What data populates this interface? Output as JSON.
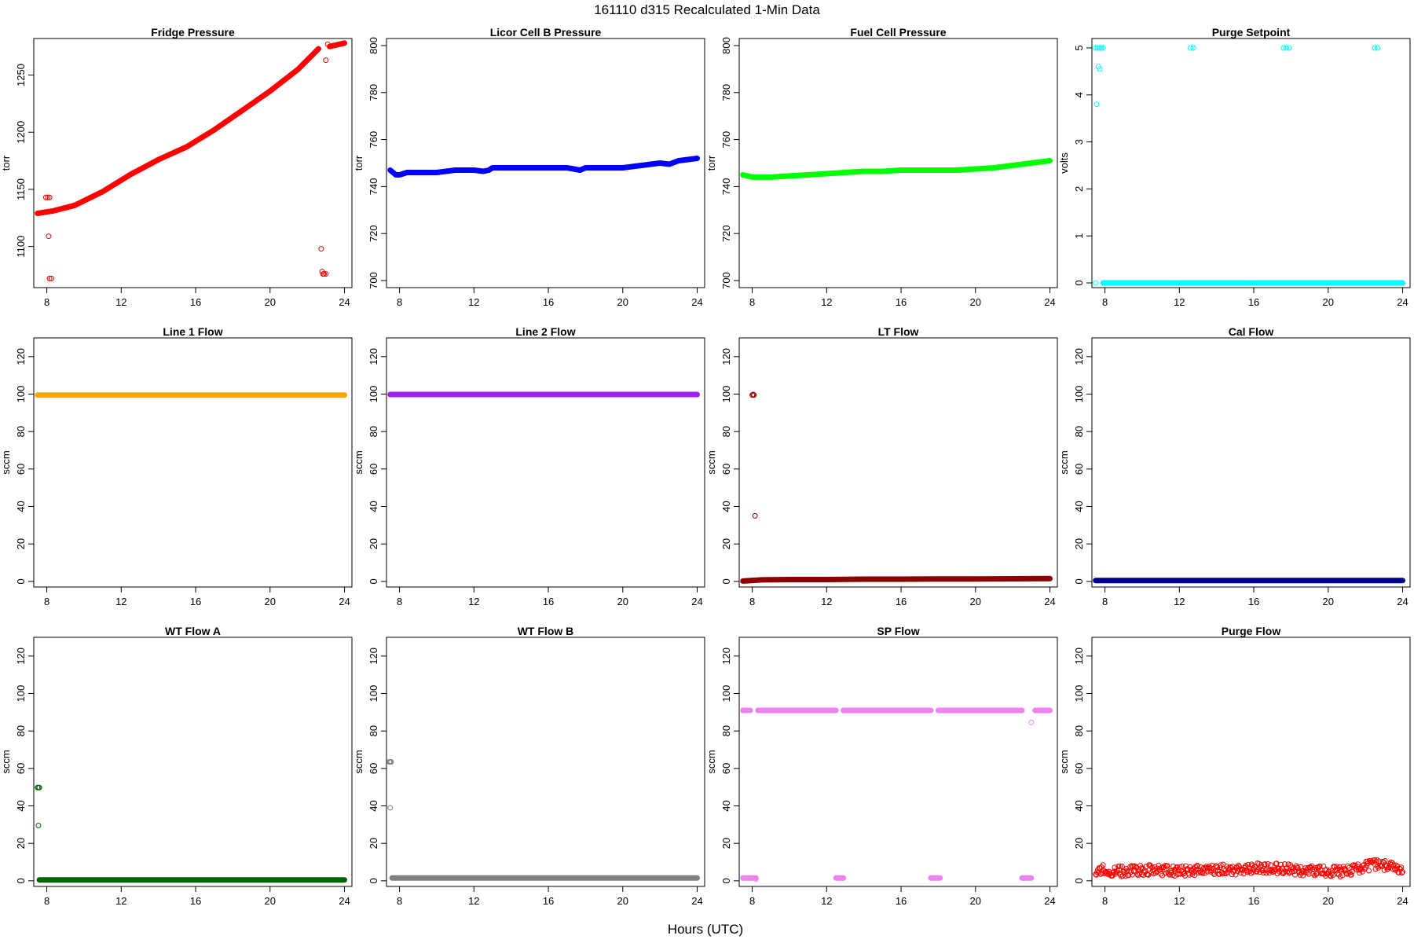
{
  "figure": {
    "title": "161110   d315   Recalculated 1-Min Data",
    "xlabel": "Hours (UTC)"
  },
  "chart_data": [
    {
      "type": "scatter",
      "title": "Fridge Pressure",
      "ylabel": "torr",
      "xlabel": "",
      "color": "#ff0000",
      "xlim": [
        7.3,
        24.4
      ],
      "ylim": [
        1064,
        1282
      ],
      "xticks": [
        8,
        12,
        16,
        20,
        24
      ],
      "yticks": [
        1100,
        1150,
        1200,
        1250
      ],
      "series": [
        {
          "kind": "line",
          "x": [
            7.5,
            8.3,
            9.5,
            11,
            12.5,
            14,
            15.5,
            17,
            18.5,
            20,
            21.5,
            22.6
          ],
          "y": [
            1129,
            1131,
            1136,
            1148,
            1163,
            1176,
            1187,
            1202,
            1219,
            1236,
            1255,
            1273
          ]
        },
        {
          "kind": "line",
          "x": [
            23.2,
            24.0
          ],
          "y": [
            1275,
            1278
          ]
        },
        {
          "kind": "points",
          "x": [
            7.95,
            8.05,
            8.15,
            8.1,
            8.15,
            8.25,
            22.75,
            22.8,
            22.85,
            22.9,
            23.0,
            23.1,
            23.0
          ],
          "y": [
            1143,
            1143,
            1143,
            1109,
            1072,
            1072,
            1098,
            1078,
            1076,
            1076,
            1076,
            1277,
            1263
          ]
        }
      ]
    },
    {
      "type": "scatter",
      "title": "Licor Cell B Pressure",
      "ylabel": "torr",
      "xlabel": "",
      "color": "#0000ff",
      "xlim": [
        7.3,
        24.4
      ],
      "ylim": [
        697,
        803
      ],
      "xticks": [
        8,
        12,
        16,
        20,
        24
      ],
      "yticks": [
        700,
        720,
        740,
        760,
        780,
        800
      ],
      "series": [
        {
          "kind": "line",
          "x": [
            7.5,
            7.8,
            8.0,
            8.4,
            9.0,
            10,
            11,
            12,
            12.5,
            12.8,
            13,
            14,
            15,
            16,
            17,
            17.7,
            18,
            19,
            20,
            21,
            22,
            22.5,
            23,
            24
          ],
          "y": [
            747,
            745,
            745,
            746,
            746,
            746,
            747,
            747,
            746.5,
            747,
            748,
            748,
            748,
            748,
            748,
            747,
            748,
            748,
            748,
            749,
            750,
            749.5,
            751,
            752
          ]
        }
      ]
    },
    {
      "type": "scatter",
      "title": "Fuel Cell Pressure",
      "ylabel": "torr",
      "xlabel": "",
      "color": "#00ff00",
      "xlim": [
        7.3,
        24.4
      ],
      "ylim": [
        697,
        803
      ],
      "xticks": [
        8,
        12,
        16,
        20,
        24
      ],
      "yticks": [
        700,
        720,
        740,
        760,
        780,
        800
      ],
      "series": [
        {
          "kind": "line",
          "x": [
            7.5,
            8,
            9,
            10,
            11,
            12,
            13,
            14,
            15,
            16,
            17,
            18,
            19,
            20,
            21,
            22,
            23,
            24
          ],
          "y": [
            745,
            744,
            744,
            744.5,
            745,
            745.5,
            746,
            746.5,
            746.5,
            747,
            747,
            747,
            747,
            747.5,
            748,
            749,
            750,
            751
          ]
        }
      ]
    },
    {
      "type": "scatter",
      "title": "Purge Setpoint",
      "ylabel": "volts",
      "xlabel": "",
      "color": "#00ffff",
      "xlim": [
        7.3,
        24.4
      ],
      "ylim": [
        -0.1,
        5.2
      ],
      "xticks": [
        8,
        12,
        16,
        20,
        24
      ],
      "yticks": [
        0,
        1,
        2,
        3,
        4,
        5
      ],
      "series": [
        {
          "kind": "line",
          "x": [
            7.9,
            24.0
          ],
          "y": [
            0,
            0
          ]
        },
        {
          "kind": "points",
          "x": [
            7.5,
            7.6,
            7.7,
            7.8,
            7.9,
            7.55,
            7.65,
            7.72,
            7.5,
            12.6,
            12.75,
            17.6,
            17.75,
            17.9,
            22.5,
            22.65
          ],
          "y": [
            5,
            5,
            5,
            5,
            5,
            3.8,
            4.6,
            4.55,
            0,
            5,
            5,
            5,
            5,
            5,
            5,
            5
          ]
        }
      ]
    },
    {
      "type": "scatter",
      "title": "Line 1 Flow",
      "ylabel": "sccm",
      "xlabel": "",
      "color": "#ffa500",
      "xlim": [
        7.3,
        24.4
      ],
      "ylim": [
        -3,
        130
      ],
      "xticks": [
        8,
        12,
        16,
        20,
        24
      ],
      "yticks": [
        0,
        20,
        40,
        60,
        80,
        100,
        120
      ],
      "series": [
        {
          "kind": "line",
          "x": [
            7.5,
            24
          ],
          "y": [
            99.5,
            99.5
          ]
        }
      ]
    },
    {
      "type": "scatter",
      "title": "Line 2 Flow",
      "ylabel": "sccm",
      "xlabel": "",
      "color": "#a020f0",
      "xlim": [
        7.3,
        24.4
      ],
      "ylim": [
        -3,
        130
      ],
      "xticks": [
        8,
        12,
        16,
        20,
        24
      ],
      "yticks": [
        0,
        20,
        40,
        60,
        80,
        100,
        120
      ],
      "series": [
        {
          "kind": "line",
          "x": [
            7.5,
            24
          ],
          "y": [
            99.8,
            99.8
          ]
        }
      ]
    },
    {
      "type": "scatter",
      "title": "LT Flow",
      "ylabel": "sccm",
      "xlabel": "",
      "color": "#8b0000",
      "xlim": [
        7.3,
        24.4
      ],
      "ylim": [
        -3,
        130
      ],
      "xticks": [
        8,
        12,
        16,
        20,
        24
      ],
      "yticks": [
        0,
        20,
        40,
        60,
        80,
        100,
        120
      ],
      "series": [
        {
          "kind": "line",
          "x": [
            7.5,
            8.5,
            10,
            12,
            14,
            16,
            18,
            20,
            22,
            24
          ],
          "y": [
            0.2,
            0.8,
            1.0,
            1.0,
            1.2,
            1.2,
            1.3,
            1.3,
            1.4,
            1.5
          ]
        },
        {
          "kind": "points",
          "x": [
            8.0,
            8.05,
            8.1,
            8.15
          ],
          "y": [
            99.5,
            99.8,
            99.5,
            35
          ]
        }
      ]
    },
    {
      "type": "scatter",
      "title": "Cal Flow",
      "ylabel": "sccm",
      "xlabel": "",
      "color": "#00008b",
      "xlim": [
        7.3,
        24.4
      ],
      "ylim": [
        -3,
        130
      ],
      "xticks": [
        8,
        12,
        16,
        20,
        24
      ],
      "yticks": [
        0,
        20,
        40,
        60,
        80,
        100,
        120
      ],
      "series": [
        {
          "kind": "line",
          "x": [
            7.5,
            24
          ],
          "y": [
            0.5,
            0.5
          ]
        }
      ]
    },
    {
      "type": "scatter",
      "title": "WT Flow A",
      "ylabel": "sccm",
      "xlabel": "",
      "color": "#006400",
      "xlim": [
        7.3,
        24.4
      ],
      "ylim": [
        -3,
        130
      ],
      "xticks": [
        8,
        12,
        16,
        20,
        24
      ],
      "yticks": [
        0,
        20,
        40,
        60,
        80,
        100,
        120
      ],
      "series": [
        {
          "kind": "line",
          "x": [
            7.6,
            24
          ],
          "y": [
            0.5,
            0.5
          ]
        },
        {
          "kind": "points",
          "x": [
            7.5,
            7.55,
            7.6,
            7.55
          ],
          "y": [
            49.8,
            49.8,
            49.8,
            29.5
          ]
        }
      ]
    },
    {
      "type": "scatter",
      "title": "WT Flow B",
      "ylabel": "sccm",
      "xlabel": "",
      "color": "#808080",
      "xlim": [
        7.3,
        24.4
      ],
      "ylim": [
        -3,
        130
      ],
      "xticks": [
        8,
        12,
        16,
        20,
        24
      ],
      "yticks": [
        0,
        20,
        40,
        60,
        80,
        100,
        120
      ],
      "series": [
        {
          "kind": "line",
          "x": [
            7.6,
            24
          ],
          "y": [
            1.5,
            1.5
          ]
        },
        {
          "kind": "points",
          "x": [
            7.45,
            7.5,
            7.55,
            7.5
          ],
          "y": [
            63.5,
            63.5,
            63.5,
            39
          ]
        }
      ]
    },
    {
      "type": "scatter",
      "title": "SP Flow",
      "ylabel": "sccm",
      "xlabel": "",
      "color": "#ee82ee",
      "xlim": [
        7.3,
        24.4
      ],
      "ylim": [
        -3,
        130
      ],
      "xticks": [
        8,
        12,
        16,
        20,
        24
      ],
      "yticks": [
        0,
        20,
        40,
        60,
        80,
        100,
        120
      ],
      "series": [
        {
          "kind": "line",
          "x": [
            7.5,
            7.9
          ],
          "y": [
            91,
            91
          ]
        },
        {
          "kind": "line",
          "x": [
            8.3,
            12.5
          ],
          "y": [
            91,
            91
          ]
        },
        {
          "kind": "line",
          "x": [
            12.9,
            17.6
          ],
          "y": [
            91,
            91
          ]
        },
        {
          "kind": "line",
          "x": [
            18.0,
            22.5
          ],
          "y": [
            91,
            91
          ]
        },
        {
          "kind": "line",
          "x": [
            23.2,
            24.0
          ],
          "y": [
            91,
            91
          ]
        },
        {
          "kind": "line",
          "x": [
            7.5,
            8.2
          ],
          "y": [
            1.5,
            1.5
          ]
        },
        {
          "kind": "line",
          "x": [
            12.5,
            12.9
          ],
          "y": [
            1.5,
            1.5
          ]
        },
        {
          "kind": "line",
          "x": [
            17.6,
            18.1
          ],
          "y": [
            1.5,
            1.5
          ]
        },
        {
          "kind": "line",
          "x": [
            22.5,
            23.0
          ],
          "y": [
            1.5,
            1.5
          ]
        },
        {
          "kind": "points",
          "x": [
            23.0,
            8.2
          ],
          "y": [
            84.5,
            1.0
          ]
        }
      ]
    },
    {
      "type": "scatter",
      "title": "Purge Flow",
      "ylabel": "sccm",
      "xlabel": "",
      "color": "#ff0000",
      "xlim": [
        7.3,
        24.4
      ],
      "ylim": [
        -3,
        130
      ],
      "xticks": [
        8,
        12,
        16,
        20,
        24
      ],
      "yticks": [
        0,
        20,
        40,
        60,
        80,
        100,
        120
      ],
      "series": [
        {
          "kind": "noise",
          "x": [
            7.5,
            24
          ],
          "center": [
            6,
            5,
            6,
            5,
            6,
            6,
            7,
            6,
            5,
            5,
            9,
            6
          ],
          "spread": 4
        }
      ]
    }
  ]
}
